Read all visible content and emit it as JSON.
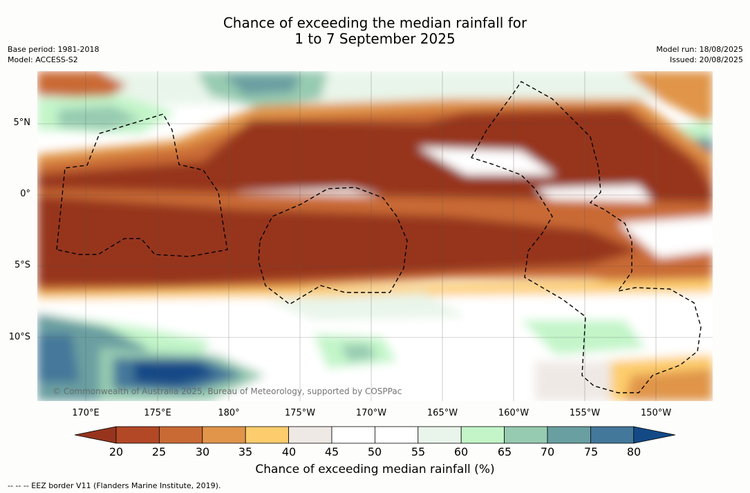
{
  "title_line1": "Chance of exceeding the median rainfall for",
  "title_line2": "1 to 7 September 2025",
  "base_period": "Base period: 1981-2018",
  "model": "Model: ACCESS-S2",
  "model_run": "Model run: 18/08/2025",
  "issued": "Issued: 20/08/2025",
  "lat_labels": [
    "5°N",
    "0°",
    "5°S",
    "10°S"
  ],
  "lon_labels": [
    "170°E",
    "175°E",
    "180°",
    "175°W",
    "170°W",
    "165°W",
    "160°W",
    "155°W",
    "150°W"
  ],
  "colorbar": {
    "title": "Chance of exceeding median rainfall (%)",
    "tick_labels": [
      "20",
      "25",
      "30",
      "35",
      "40",
      "45",
      "50",
      "55",
      "60",
      "65",
      "70",
      "75",
      "80"
    ],
    "colors": [
      "#96341e",
      "#b24826",
      "#c96a34",
      "#e0954a",
      "#fdcc6c",
      "#efe9e5",
      "#ffffff",
      "#ffffff",
      "#e9f5ea",
      "#c3f5c9",
      "#97cbb1",
      "#6a9fa1",
      "#44789a",
      "#134a86"
    ]
  },
  "credit": "© Commonwealth of Australia 2025, Bureau of Meteorology, supported by COSPPac",
  "eez_legend": "-- -- -- EEZ border V11 (Flanders Marine Institute, 2019)."
}
